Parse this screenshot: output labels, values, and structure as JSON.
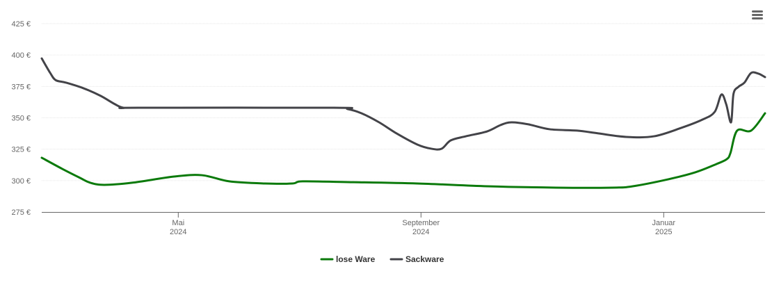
{
  "chart_data": {
    "type": "line",
    "xlim": [
      1.75,
      13.67
    ],
    "xticks": [
      {
        "value": 4,
        "label": "Mai\n2024"
      },
      {
        "value": 8,
        "label": "September\n2024"
      },
      {
        "value": 12,
        "label": "Januar\n2025"
      }
    ],
    "ylim": [
      275,
      425
    ],
    "yticks": [
      {
        "value": 275,
        "label": "275 €"
      },
      {
        "value": 300,
        "label": "300 €"
      },
      {
        "value": 325,
        "label": "325 €"
      },
      {
        "value": 350,
        "label": "350 €"
      },
      {
        "value": 375,
        "label": "375 €"
      },
      {
        "value": 400,
        "label": "400 €"
      },
      {
        "value": 425,
        "label": "425 €"
      }
    ],
    "grid": true,
    "legend": "bottom",
    "series": [
      {
        "name": "lose Ware",
        "color": "#0b7a0b",
        "x": [
          1.75,
          2.09,
          2.38,
          2.55,
          2.78,
          3.24,
          3.93,
          4.39,
          4.84,
          5.42,
          5.88,
          6.05,
          6.79,
          7.94,
          9.09,
          10.23,
          11.15,
          11.49,
          12.07,
          12.52,
          12.87,
          13.04,
          13.1,
          13.21,
          13.44,
          13.67
        ],
        "values": [
          318.2,
          309.3,
          302.2,
          298.3,
          296.6,
          298.3,
          303.2,
          304.3,
          299.4,
          297.7,
          297.7,
          299.4,
          298.8,
          297.7,
          295.5,
          294.4,
          294.4,
          295.5,
          301,
          306.6,
          313.2,
          317.1,
          322,
          339.8,
          339.8,
          353.6
        ]
      },
      {
        "name": "Sackware",
        "color": "#434348",
        "x": [
          1.75,
          1.89,
          1.98,
          2.15,
          2.44,
          2.72,
          2.95,
          3.1,
          3.35,
          6.56,
          6.79,
          7.02,
          7.31,
          7.6,
          7.94,
          8.17,
          8.34,
          8.49,
          8.74,
          9.09,
          9.31,
          9.49,
          9.77,
          10.12,
          10.57,
          10.92,
          11.38,
          11.84,
          12.29,
          12.64,
          12.84,
          12.95,
          13.03,
          13.11,
          13.15,
          13.23,
          13.33,
          13.44,
          13.56,
          13.67
        ],
        "values": [
          397.3,
          385.7,
          380,
          378,
          373.5,
          367.5,
          361,
          358,
          358,
          358,
          357,
          353.6,
          346.4,
          337.5,
          328.7,
          325.4,
          325.4,
          332,
          335.3,
          339.2,
          344.2,
          346.4,
          344.8,
          340.9,
          339.8,
          337.6,
          334.8,
          335.3,
          342,
          348.6,
          354.7,
          368.5,
          360.8,
          346.4,
          369,
          374.6,
          378,
          385.7,
          385.2,
          382.4
        ]
      }
    ]
  }
}
